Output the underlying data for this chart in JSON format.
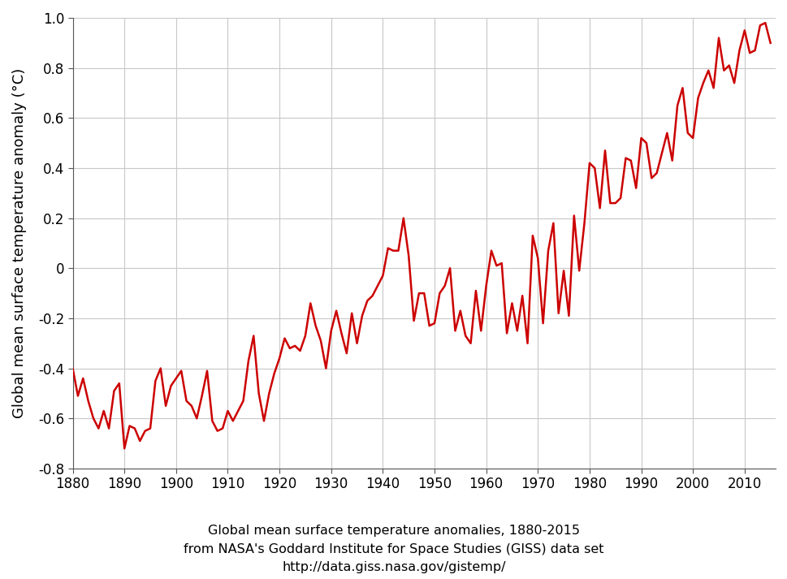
{
  "title_line1": "Global mean surface temperature anomalies, 1880-2015",
  "title_line2": "from NASA's Goddard Institute for Space Studies (GISS) data set",
  "title_line3": "http://data.giss.nasa.gov/gistemp/",
  "ylabel": "Global mean surface temperature anomaly (°C)",
  "line_color": "#cc0000",
  "line_width": 1.8,
  "background_color": "#ffffff",
  "grid_color": "#c8c8c8",
  "xlim": [
    1880,
    2016
  ],
  "ylim": [
    -0.8,
    1.0
  ],
  "xticks": [
    1880,
    1890,
    1900,
    1910,
    1920,
    1930,
    1940,
    1950,
    1960,
    1970,
    1980,
    1990,
    2000,
    2010
  ],
  "yticks": [
    -0.8,
    -0.6,
    -0.4,
    -0.2,
    0.0,
    0.2,
    0.4,
    0.6,
    0.8,
    1.0
  ],
  "years": [
    1880,
    1881,
    1882,
    1883,
    1884,
    1885,
    1886,
    1887,
    1888,
    1889,
    1890,
    1891,
    1892,
    1893,
    1894,
    1895,
    1896,
    1897,
    1898,
    1899,
    1900,
    1901,
    1902,
    1903,
    1904,
    1905,
    1906,
    1907,
    1908,
    1909,
    1910,
    1911,
    1912,
    1913,
    1914,
    1915,
    1916,
    1917,
    1918,
    1919,
    1920,
    1921,
    1922,
    1923,
    1924,
    1925,
    1926,
    1927,
    1928,
    1929,
    1930,
    1931,
    1932,
    1933,
    1934,
    1935,
    1936,
    1937,
    1938,
    1939,
    1940,
    1941,
    1942,
    1943,
    1944,
    1945,
    1946,
    1947,
    1948,
    1949,
    1950,
    1951,
    1952,
    1953,
    1954,
    1955,
    1956,
    1957,
    1958,
    1959,
    1960,
    1961,
    1962,
    1963,
    1964,
    1965,
    1966,
    1967,
    1968,
    1969,
    1970,
    1971,
    1972,
    1973,
    1974,
    1975,
    1976,
    1977,
    1978,
    1979,
    1980,
    1981,
    1982,
    1983,
    1984,
    1985,
    1986,
    1987,
    1988,
    1989,
    1990,
    1991,
    1992,
    1993,
    1994,
    1995,
    1996,
    1997,
    1998,
    1999,
    2000,
    2001,
    2002,
    2003,
    2004,
    2005,
    2006,
    2007,
    2008,
    2009,
    2010,
    2011,
    2012,
    2013,
    2014,
    2015
  ],
  "anomalies": [
    -0.4,
    -0.51,
    -0.44,
    -0.53,
    -0.6,
    -0.64,
    -0.57,
    -0.64,
    -0.49,
    -0.46,
    -0.72,
    -0.63,
    -0.64,
    -0.69,
    -0.65,
    -0.64,
    -0.45,
    -0.4,
    -0.55,
    -0.47,
    -0.44,
    -0.41,
    -0.53,
    -0.55,
    -0.6,
    -0.51,
    -0.41,
    -0.61,
    -0.65,
    -0.64,
    -0.57,
    -0.61,
    -0.57,
    -0.53,
    -0.37,
    -0.27,
    -0.5,
    -0.61,
    -0.5,
    -0.42,
    -0.36,
    -0.28,
    -0.32,
    -0.31,
    -0.33,
    -0.27,
    -0.14,
    -0.23,
    -0.29,
    -0.4,
    -0.25,
    -0.17,
    -0.26,
    -0.34,
    -0.18,
    -0.3,
    -0.19,
    -0.13,
    -0.11,
    -0.07,
    -0.03,
    0.08,
    0.07,
    0.07,
    0.2,
    0.05,
    -0.21,
    -0.1,
    -0.1,
    -0.23,
    -0.22,
    -0.1,
    -0.07,
    0.0,
    -0.25,
    -0.17,
    -0.27,
    -0.3,
    -0.09,
    -0.25,
    -0.07,
    0.07,
    0.01,
    0.02,
    -0.26,
    -0.14,
    -0.25,
    -0.11,
    -0.3,
    0.13,
    0.04,
    -0.22,
    0.07,
    0.18,
    -0.18,
    -0.01,
    -0.19,
    0.21,
    -0.01,
    0.18,
    0.42,
    0.4,
    0.24,
    0.47,
    0.26,
    0.26,
    0.28,
    0.44,
    0.43,
    0.32,
    0.52,
    0.5,
    0.36,
    0.38,
    0.46,
    0.54,
    0.43,
    0.65,
    0.72,
    0.54,
    0.52,
    0.68,
    0.74,
    0.79,
    0.72,
    0.92,
    0.79,
    0.81,
    0.74,
    0.87,
    0.95,
    0.86,
    0.87,
    0.97,
    0.98,
    0.9
  ],
  "caption_fontsize": 11.5,
  "tick_fontsize": 12,
  "ylabel_fontsize": 13
}
